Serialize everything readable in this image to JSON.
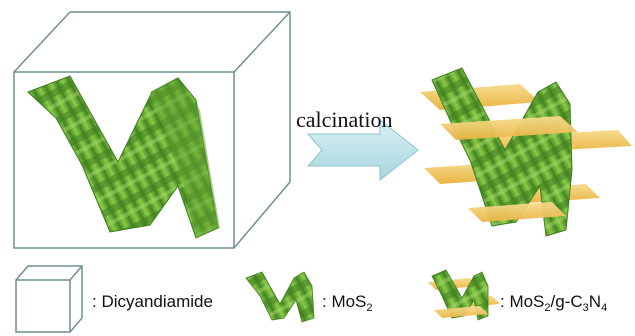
{
  "process": {
    "step_label": "calcination"
  },
  "legend": {
    "items": [
      {
        "icon": "cube-outline-icon",
        "label": ": Dicyandiamide"
      },
      {
        "icon": "mos2-sheet-icon",
        "label_prefix": ": MoS",
        "label_sub": "2"
      },
      {
        "icon": "mos2-gc3n4-composite-icon",
        "label_parts": [
          ": MoS",
          "2",
          "/g-C",
          "3",
          "N",
          "4"
        ]
      }
    ]
  },
  "colors": {
    "mos2_green": "#6fb33a",
    "mos2_green_dark": "#3f7f1f",
    "gc3n4_yellow": "#f2c766",
    "arrow_fill": "#bfe3ea",
    "cube_line": "#6f8f92"
  }
}
